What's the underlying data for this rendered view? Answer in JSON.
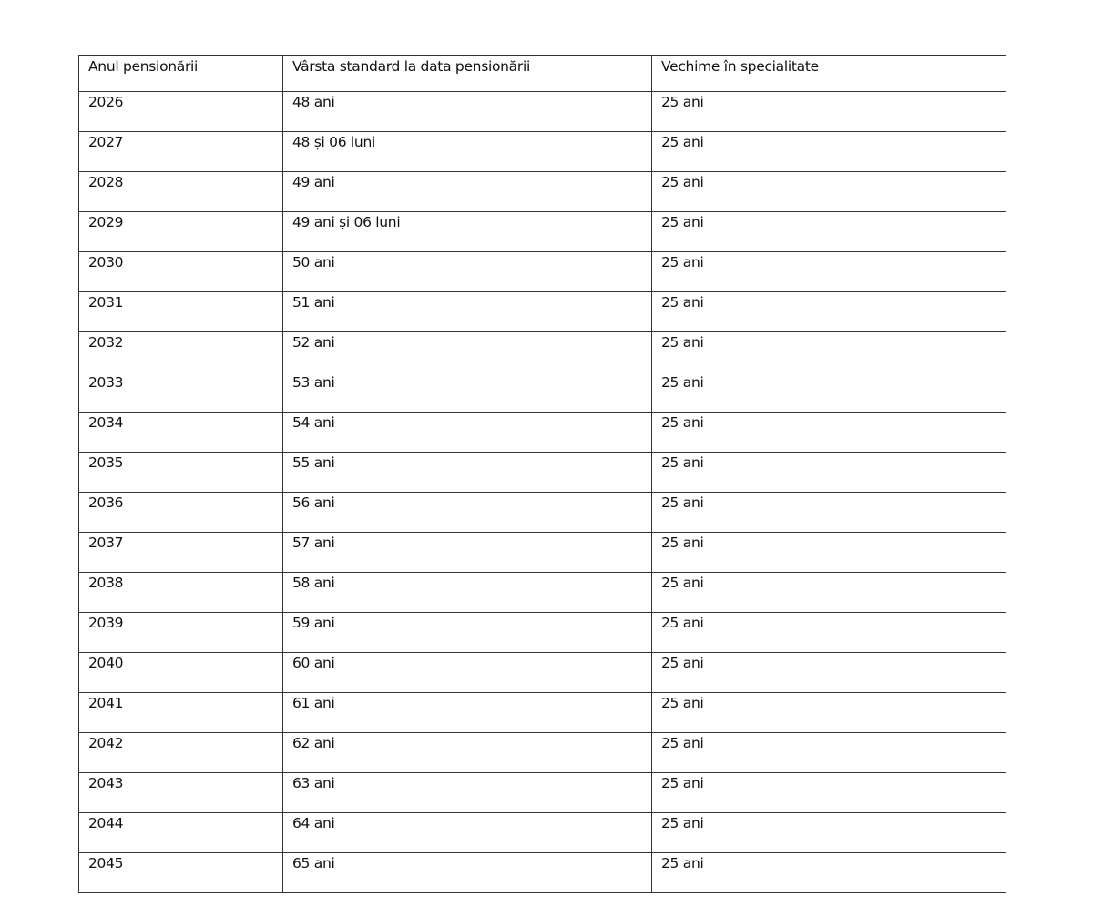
{
  "table": {
    "headers": [
      "Anul pensionării",
      "Vârsta standard la data pensionării",
      "Vechime  în specialitate"
    ],
    "rows": [
      [
        "2026",
        "48 ani",
        "25 ani"
      ],
      [
        "2027",
        "48 și 06 luni",
        "25 ani"
      ],
      [
        "2028",
        "49 ani",
        "25 ani"
      ],
      [
        "2029",
        "49 ani și 06 luni",
        "25 ani"
      ],
      [
        "2030",
        "50 ani",
        "25 ani"
      ],
      [
        "2031",
        "51 ani",
        "25 ani"
      ],
      [
        "2032",
        "52 ani",
        "25 ani"
      ],
      [
        "2033",
        "53 ani",
        "25 ani"
      ],
      [
        "2034",
        "54 ani",
        "25 ani"
      ],
      [
        "2035",
        "55 ani",
        "25 ani"
      ],
      [
        "2036",
        "56 ani",
        "25 ani"
      ],
      [
        "2037",
        "57 ani",
        "25 ani"
      ],
      [
        "2038",
        "58 ani",
        "25 ani"
      ],
      [
        "2039",
        "59 ani",
        "25 ani"
      ],
      [
        "2040",
        "60 ani",
        "25 ani"
      ],
      [
        "2041",
        "61 ani",
        "25 ani"
      ],
      [
        "2042",
        "62 ani",
        "25 ani"
      ],
      [
        "2043",
        "63 ani",
        "25 ani"
      ],
      [
        "2044",
        "64 ani",
        "25 ani"
      ],
      [
        "2045",
        "65 ani",
        "25 ani"
      ]
    ]
  }
}
